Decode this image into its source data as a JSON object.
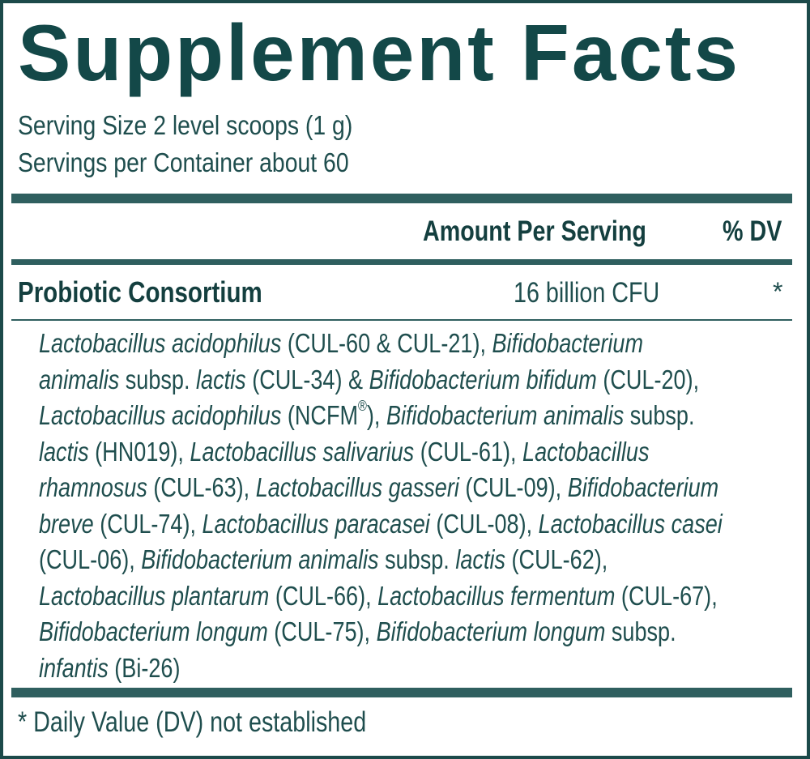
{
  "title": "Supplement Facts",
  "serving_size": "Serving Size 2 level scoops (1 g)",
  "servings_per_container": "Servings per Container about 60",
  "columns": {
    "amount": "Amount Per Serving",
    "dv": "% DV"
  },
  "row": {
    "name": "Probiotic Consortium",
    "amount": "16 billion CFU",
    "dv": "*"
  },
  "blend_lines": [
    [
      {
        "t": "Lactobacillus acidophilus",
        "i": true
      },
      {
        "t": " (CUL-60 & CUL-21), "
      },
      {
        "t": "Bifidobacterium",
        "i": true
      }
    ],
    [
      {
        "t": "animalis",
        "i": true
      },
      {
        "t": " subsp. "
      },
      {
        "t": "lactis",
        "i": true
      },
      {
        "t": " (CUL-34) & "
      },
      {
        "t": "Bifidobacterium bifidum",
        "i": true
      },
      {
        "t": " (CUL-20),"
      }
    ],
    [
      {
        "t": "Lactobacillus acidophilus",
        "i": true
      },
      {
        "t": " (NCFM"
      },
      {
        "t": "®",
        "sup": true
      },
      {
        "t": "), "
      },
      {
        "t": "Bifidobacterium animalis",
        "i": true
      },
      {
        "t": " subsp."
      }
    ],
    [
      {
        "t": "lactis",
        "i": true
      },
      {
        "t": " (HN019), "
      },
      {
        "t": "Lactobacillus salivarius",
        "i": true
      },
      {
        "t": " (CUL-61), "
      },
      {
        "t": "Lactobacillus",
        "i": true
      }
    ],
    [
      {
        "t": "rhamnosus",
        "i": true
      },
      {
        "t": " (CUL-63), "
      },
      {
        "t": "Lactobacillus gasseri",
        "i": true
      },
      {
        "t": " (CUL-09), "
      },
      {
        "t": "Bifidobacterium",
        "i": true
      }
    ],
    [
      {
        "t": "breve",
        "i": true
      },
      {
        "t": " (CUL-74), "
      },
      {
        "t": "Lactobacillus paracasei",
        "i": true
      },
      {
        "t": " (CUL-08), "
      },
      {
        "t": "Lactobacillus casei",
        "i": true
      }
    ],
    [
      {
        "t": "(CUL-06), "
      },
      {
        "t": "Bifidobacterium animalis",
        "i": true
      },
      {
        "t": " subsp. "
      },
      {
        "t": "lactis",
        "i": true
      },
      {
        "t": " (CUL-62),"
      }
    ],
    [
      {
        "t": "Lactobacillus plantarum",
        "i": true
      },
      {
        "t": " (CUL-66), "
      },
      {
        "t": "Lactobacillus fermentum",
        "i": true
      },
      {
        "t": " (CUL-67),"
      }
    ],
    [
      {
        "t": "Bifidobacterium longum",
        "i": true
      },
      {
        "t": " (CUL-75), "
      },
      {
        "t": "Bifidobacterium longum",
        "i": true
      },
      {
        "t": " subsp."
      }
    ],
    [
      {
        "t": "infantis",
        "i": true
      },
      {
        "t": " (Bi-26)"
      }
    ]
  ],
  "footnote": "* Daily Value (DV) not established",
  "colors": {
    "ink": "#1c4a4a",
    "rule": "#2f5f5f"
  }
}
